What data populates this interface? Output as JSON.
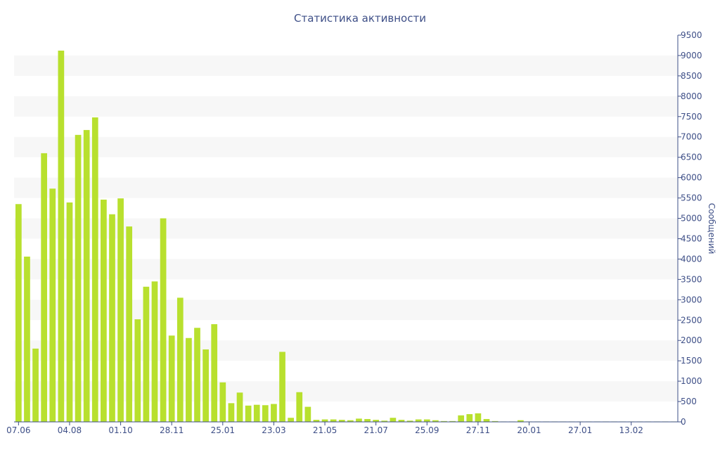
{
  "chart_data": {
    "type": "bar",
    "title": "Статистика активности",
    "ylabel": "Сообщений",
    "xlabel": "",
    "ylim": [
      0,
      9500
    ],
    "y_ticks": [
      0,
      500,
      1000,
      1500,
      2000,
      2500,
      3000,
      3500,
      4000,
      4500,
      5000,
      5500,
      6000,
      6500,
      7000,
      7500,
      8000,
      8500,
      9000,
      9500
    ],
    "y_axis_position": "right",
    "grid": "alternating horizontal bands",
    "x_tick_labels": [
      {
        "index": 0,
        "label": "07.06"
      },
      {
        "index": 6,
        "label": "04.08"
      },
      {
        "index": 12,
        "label": "01.10"
      },
      {
        "index": 18,
        "label": "28.11"
      },
      {
        "index": 24,
        "label": "25.01"
      },
      {
        "index": 30,
        "label": "23.03"
      },
      {
        "index": 36,
        "label": "21.05"
      },
      {
        "index": 42,
        "label": "21.07"
      },
      {
        "index": 48,
        "label": "25.09"
      },
      {
        "index": 54,
        "label": "27.11"
      },
      {
        "index": 60,
        "label": "20.01"
      },
      {
        "index": 66,
        "label": "27.01"
      },
      {
        "index": 72,
        "label": "13.02"
      }
    ],
    "bar_color": "#b8e02e",
    "band_color": "#f7f7f7",
    "axis_color": "#3e4f87",
    "values": [
      5350,
      4060,
      1800,
      6600,
      5730,
      9120,
      5390,
      7050,
      7170,
      7480,
      5460,
      5100,
      5490,
      4800,
      2520,
      3320,
      3450,
      5000,
      2120,
      3050,
      2060,
      2310,
      1780,
      2400,
      970,
      460,
      720,
      400,
      420,
      410,
      440,
      1720,
      100,
      730,
      370,
      50,
      60,
      60,
      50,
      40,
      80,
      70,
      50,
      30,
      100,
      50,
      30,
      60,
      60,
      40,
      20,
      20,
      160,
      190,
      210,
      70,
      20,
      10,
      10,
      40,
      10,
      10,
      10,
      10,
      10,
      10,
      10,
      10,
      10,
      10,
      10,
      10,
      10,
      10,
      10,
      10,
      10,
      10
    ]
  }
}
